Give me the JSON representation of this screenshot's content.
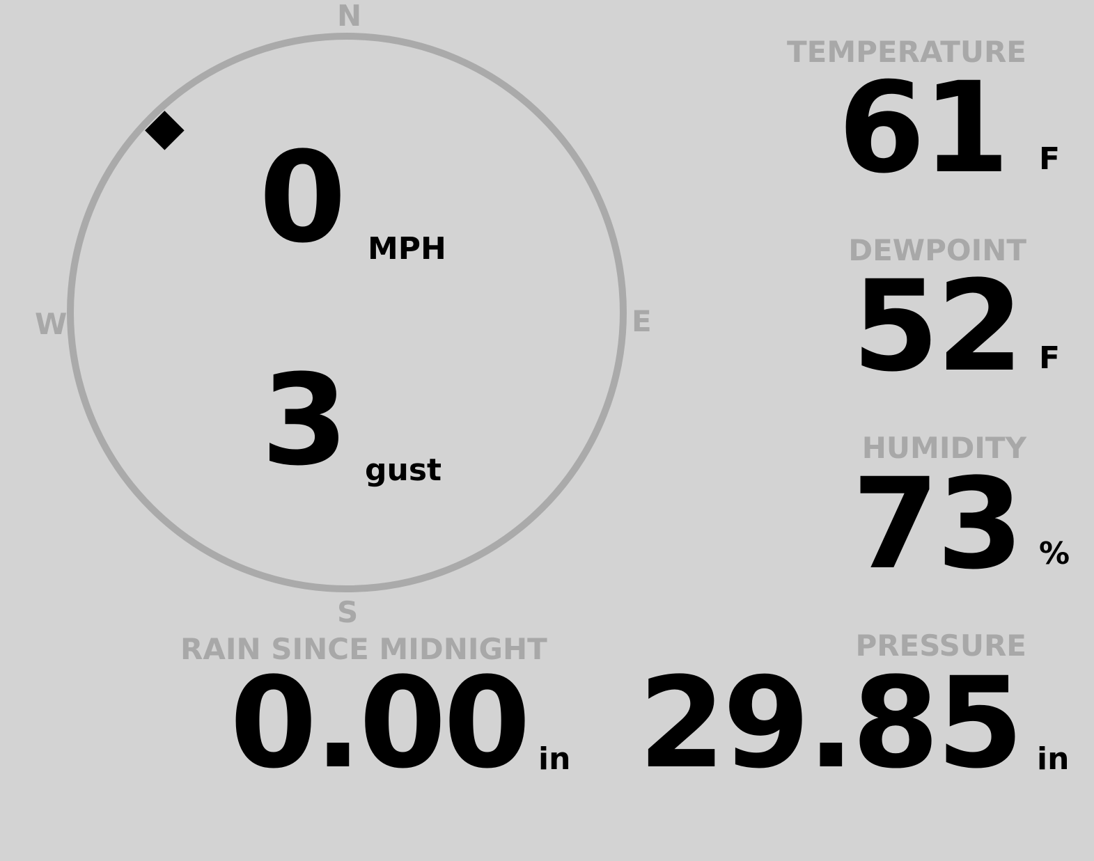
{
  "wind": {
    "cardinal": {
      "n": "N",
      "e": "E",
      "s": "S",
      "w": "W"
    },
    "speed": "0",
    "speed_unit": "MPH",
    "gust": "3",
    "gust_unit": "gust",
    "direction_degrees": 315
  },
  "temperature": {
    "label": "TEMPERATURE",
    "value": "61",
    "unit": "F"
  },
  "dewpoint": {
    "label": "DEWPOINT",
    "value": "52",
    "unit": "F"
  },
  "humidity": {
    "label": "HUMIDITY",
    "value": "73",
    "unit": "%"
  },
  "rain": {
    "label": "RAIN SINCE MIDNIGHT",
    "value": "0.00",
    "unit": "in"
  },
  "pressure": {
    "label": "PRESSURE",
    "value": "29.85",
    "unit": "in"
  },
  "colors": {
    "background": "#d3d3d3",
    "label": "#a8a8a8",
    "value": "#000000",
    "ring": "#aaaaaa"
  }
}
